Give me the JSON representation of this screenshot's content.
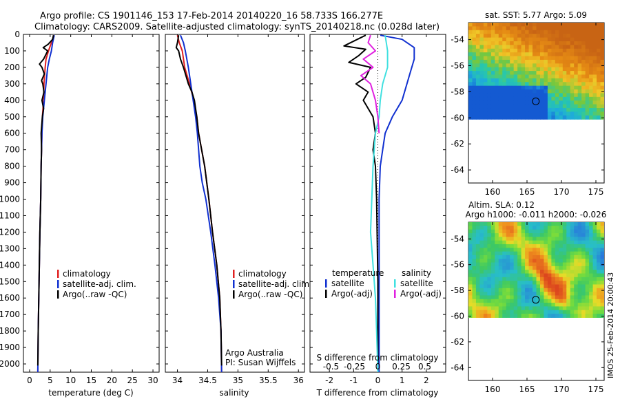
{
  "title_line1": "Argo profile: CS 1901146_153 17-Feb-2014 20140220_16 58.733S 166.277E",
  "title_line2": "Climatology: CARS2009. Satellite-adjusted climatology: synTS_20140218.nc (0.028d later)",
  "watermark": "IMOS 25-Feb-2014 20:00:43",
  "colors": {
    "climatology": "#e02020",
    "satellite": "#1030d0",
    "argo": "#000000",
    "sat_salinity": "#40e0e0",
    "argo_salinity": "#e020e0"
  },
  "chart_data": [
    {
      "id": "temperature",
      "type": "line",
      "xlabel": "temperature (deg C)",
      "ylabel": "",
      "xlim": [
        -1.5,
        31.5
      ],
      "ylim": [
        2050,
        0
      ],
      "xticks": [
        0,
        5,
        10,
        15,
        20,
        25,
        30
      ],
      "yticks": [
        0,
        100,
        200,
        300,
        400,
        500,
        600,
        700,
        800,
        900,
        1000,
        1100,
        1200,
        1300,
        1400,
        1500,
        1600,
        1700,
        1800,
        1900,
        2000
      ],
      "legend": [
        "climatology",
        "satellite-adj. clim.",
        "Argo(..raw -QC)"
      ],
      "series": [
        {
          "name": "climatology",
          "color": "#e02020",
          "points": [
            [
              5.9,
              5
            ],
            [
              5.3,
              50
            ],
            [
              4.6,
              100
            ],
            [
              4.0,
              150
            ],
            [
              3.8,
              200
            ],
            [
              3.5,
              300
            ],
            [
              3.4,
              400
            ],
            [
              3.1,
              500
            ],
            [
              3.0,
              600
            ],
            [
              2.9,
              700
            ],
            [
              2.8,
              800
            ],
            [
              2.7,
              1000
            ],
            [
              2.5,
              1200
            ],
            [
              2.3,
              1500
            ],
            [
              2.1,
              1800
            ],
            [
              2.0,
              2050
            ]
          ]
        },
        {
          "name": "satellite-adj. clim.",
          "color": "#1030d0",
          "points": [
            [
              6.0,
              5
            ],
            [
              5.6,
              50
            ],
            [
              5.3,
              100
            ],
            [
              4.8,
              150
            ],
            [
              4.4,
              200
            ],
            [
              4.0,
              300
            ],
            [
              3.6,
              400
            ],
            [
              3.2,
              500
            ],
            [
              3.0,
              600
            ],
            [
              2.9,
              700
            ],
            [
              2.8,
              800
            ],
            [
              2.7,
              1000
            ],
            [
              2.5,
              1200
            ],
            [
              2.3,
              1500
            ],
            [
              2.1,
              1800
            ],
            [
              2.0,
              2050
            ]
          ]
        },
        {
          "name": "Argo(..raw -QC)",
          "color": "#000000",
          "points": [
            [
              5.8,
              5
            ],
            [
              5.6,
              30
            ],
            [
              4.5,
              60
            ],
            [
              3.3,
              80
            ],
            [
              4.4,
              100
            ],
            [
              3.4,
              150
            ],
            [
              2.4,
              180
            ],
            [
              3.0,
              200
            ],
            [
              3.6,
              240
            ],
            [
              2.9,
              280
            ],
            [
              3.2,
              300
            ],
            [
              3.5,
              350
            ],
            [
              3.0,
              400
            ],
            [
              3.4,
              450
            ],
            [
              3.1,
              500
            ],
            [
              2.8,
              600
            ],
            [
              2.9,
              700
            ],
            [
              2.8,
              800
            ],
            [
              2.7,
              1000
            ],
            [
              2.5,
              1200
            ],
            [
              2.3,
              1500
            ],
            [
              2.1,
              1800
            ],
            [
              2.0,
              2010
            ]
          ]
        }
      ]
    },
    {
      "id": "salinity",
      "type": "line",
      "xlabel": "salinity",
      "ylabel": "",
      "xlim": [
        33.8,
        36.1
      ],
      "ylim": [
        2050,
        0
      ],
      "xticks": [
        34,
        34.5,
        35,
        35.5,
        36
      ],
      "xticklabels": [
        "34",
        "34.5",
        "35",
        "35.5",
        "36"
      ],
      "legend": [
        "climatology",
        "satellite-adj. clim.",
        "Argo(..raw -QC)"
      ],
      "annotations": [
        "Argo Australia",
        "PI: Susan Wijffels"
      ],
      "series": [
        {
          "name": "climatology",
          "color": "#e02020",
          "points": [
            [
              34.0,
              5
            ],
            [
              34.03,
              50
            ],
            [
              34.08,
              100
            ],
            [
              34.12,
              200
            ],
            [
              34.2,
              300
            ],
            [
              34.27,
              400
            ],
            [
              34.32,
              500
            ],
            [
              34.35,
              600
            ],
            [
              34.4,
              700
            ],
            [
              34.45,
              800
            ],
            [
              34.52,
              1000
            ],
            [
              34.58,
              1200
            ],
            [
              34.65,
              1400
            ],
            [
              34.7,
              1600
            ],
            [
              34.72,
              1800
            ],
            [
              34.73,
              2050
            ]
          ]
        },
        {
          "name": "satellite-adj. clim.",
          "color": "#1030d0",
          "points": [
            [
              34.05,
              5
            ],
            [
              34.1,
              50
            ],
            [
              34.13,
              100
            ],
            [
              34.18,
              200
            ],
            [
              34.22,
              300
            ],
            [
              34.26,
              400
            ],
            [
              34.3,
              500
            ],
            [
              34.33,
              600
            ],
            [
              34.35,
              700
            ],
            [
              34.37,
              800
            ],
            [
              34.41,
              900
            ],
            [
              34.47,
              1000
            ],
            [
              34.55,
              1200
            ],
            [
              34.62,
              1400
            ],
            [
              34.68,
              1600
            ],
            [
              34.72,
              1800
            ],
            [
              34.73,
              2050
            ]
          ]
        },
        {
          "name": "Argo(..raw -QC)",
          "color": "#000000",
          "points": [
            [
              34.02,
              5
            ],
            [
              34.0,
              50
            ],
            [
              33.98,
              80
            ],
            [
              34.02,
              100
            ],
            [
              34.05,
              150
            ],
            [
              34.1,
              200
            ],
            [
              34.18,
              300
            ],
            [
              34.24,
              350
            ],
            [
              34.28,
              400
            ],
            [
              34.3,
              450
            ],
            [
              34.32,
              500
            ],
            [
              34.35,
              600
            ],
            [
              34.4,
              700
            ],
            [
              34.45,
              800
            ],
            [
              34.52,
              1000
            ],
            [
              34.58,
              1200
            ],
            [
              34.65,
              1400
            ],
            [
              34.7,
              1600
            ],
            [
              34.72,
              1800
            ],
            [
              34.73,
              2010
            ]
          ]
        }
      ]
    },
    {
      "id": "differences",
      "type": "line",
      "xlabel": "T difference from climatology",
      "x2label": "S difference from climatology",
      "xlim": [
        -2.8,
        2.8
      ],
      "ylim": [
        2050,
        0
      ],
      "xticks": [
        -2,
        -1,
        0,
        1,
        2
      ],
      "x2ticks": [
        -0.5,
        -0.25,
        0,
        0.25,
        0.5
      ],
      "x2ticklabels": [
        "-0.5",
        "-0.25",
        "0",
        "0.25",
        "0.5"
      ],
      "legend_titles": [
        "temperature",
        "salinity"
      ],
      "legend": [
        "satellite",
        "Argo(-adj)",
        "satellite",
        "Argo(-adj)"
      ],
      "series": [
        {
          "name": "satellite",
          "group": "temperature",
          "color": "#1030d0",
          "points": [
            [
              0.1,
              5
            ],
            [
              1.0,
              30
            ],
            [
              1.5,
              80
            ],
            [
              1.5,
              150
            ],
            [
              1.3,
              250
            ],
            [
              1.0,
              400
            ],
            [
              0.6,
              500
            ],
            [
              0.3,
              600
            ],
            [
              0.2,
              700
            ],
            [
              0.1,
              800
            ],
            [
              0.05,
              1000
            ],
            [
              0.05,
              1500
            ],
            [
              0.05,
              2050
            ]
          ]
        },
        {
          "name": "Argo(-adj)",
          "group": "temperature",
          "color": "#000000",
          "points": [
            [
              -0.5,
              5
            ],
            [
              -1.4,
              70
            ],
            [
              -0.5,
              90
            ],
            [
              -0.8,
              130
            ],
            [
              -1.2,
              170
            ],
            [
              -0.3,
              200
            ],
            [
              -0.5,
              260
            ],
            [
              -0.9,
              300
            ],
            [
              -0.4,
              350
            ],
            [
              -0.6,
              400
            ],
            [
              -0.2,
              500
            ],
            [
              -0.1,
              600
            ],
            [
              -0.2,
              700
            ],
            [
              -0.1,
              800
            ],
            [
              -0.05,
              1000
            ],
            [
              0,
              1500
            ],
            [
              0,
              2000
            ]
          ]
        },
        {
          "name": "satellite",
          "group": "salinity",
          "color": "#40e0e0",
          "points": [
            [
              0.3,
              5
            ],
            [
              0.4,
              100
            ],
            [
              0.4,
              200
            ],
            [
              0.2,
              300
            ],
            [
              0.1,
              400
            ],
            [
              0.05,
              500
            ],
            [
              -0.1,
              600
            ],
            [
              -0.15,
              700
            ],
            [
              -0.2,
              800
            ],
            [
              -0.25,
              1000
            ],
            [
              -0.3,
              1200
            ],
            [
              -0.2,
              1400
            ],
            [
              -0.1,
              1600
            ],
            [
              -0.05,
              1800
            ],
            [
              0,
              2050
            ]
          ]
        },
        {
          "name": "Argo(-adj)",
          "group": "salinity",
          "color": "#e020e0",
          "points": [
            [
              -0.3,
              5
            ],
            [
              -0.4,
              50
            ],
            [
              -0.1,
              100
            ],
            [
              -0.6,
              150
            ],
            [
              -0.2,
              200
            ],
            [
              -0.7,
              250
            ],
            [
              -0.3,
              300
            ],
            [
              -0.1,
              400
            ],
            [
              0,
              500
            ],
            [
              0.05,
              600
            ]
          ]
        }
      ]
    }
  ],
  "maps": [
    {
      "id": "sst-map",
      "title": "sat. SST: 5.77 Argo: 5.09",
      "xticks": [
        160,
        165,
        170,
        175
      ],
      "yticks": [
        -54,
        -56,
        -58,
        -60,
        -62,
        -64
      ],
      "xlim": [
        156.5,
        176.2
      ],
      "ylim": [
        -65,
        -52.7
      ],
      "data_ylim": [
        -60.1,
        -52.7
      ],
      "float": {
        "lon": 166.277,
        "lat": -58.733
      }
    },
    {
      "id": "sla-map",
      "title": "Altim. SLA: 0.12",
      "subtitle": "Argo h1000: -0.011 h2000: -0.026",
      "xticks": [
        160,
        165,
        170,
        175
      ],
      "yticks": [
        -54,
        -56,
        -58,
        -60,
        -62,
        -64
      ],
      "xlim": [
        156.5,
        176.2
      ],
      "ylim": [
        -65,
        -52.7
      ],
      "data_ylim": [
        -60.1,
        -52.7
      ],
      "float": {
        "lon": 166.277,
        "lat": -58.733
      }
    }
  ]
}
